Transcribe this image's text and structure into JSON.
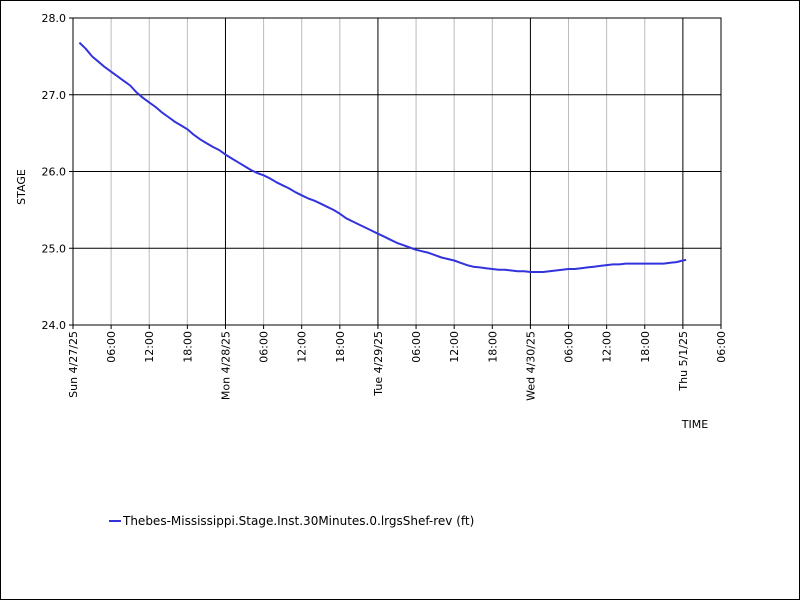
{
  "chart_data": {
    "type": "line",
    "ylabel": "STAGE",
    "xlabel": "TIME",
    "ylim": [
      24.0,
      28.0
    ],
    "y_ticks": [
      "24.0",
      "25.0",
      "26.0",
      "27.0",
      "28.0"
    ],
    "x_range_hours": [
      0,
      102
    ],
    "x_ticks": [
      {
        "h": 0,
        "label": "Sun 4/27/25",
        "major": true
      },
      {
        "h": 6,
        "label": "06:00",
        "major": false
      },
      {
        "h": 12,
        "label": "12:00",
        "major": false
      },
      {
        "h": 18,
        "label": "18:00",
        "major": false
      },
      {
        "h": 24,
        "label": "Mon 4/28/25",
        "major": true
      },
      {
        "h": 30,
        "label": "06:00",
        "major": false
      },
      {
        "h": 36,
        "label": "12:00",
        "major": false
      },
      {
        "h": 42,
        "label": "18:00",
        "major": false
      },
      {
        "h": 48,
        "label": "Tue 4/29/25",
        "major": true
      },
      {
        "h": 54,
        "label": "06:00",
        "major": false
      },
      {
        "h": 60,
        "label": "12:00",
        "major": false
      },
      {
        "h": 66,
        "label": "18:00",
        "major": false
      },
      {
        "h": 72,
        "label": "Wed 4/30/25",
        "major": true
      },
      {
        "h": 78,
        "label": "06:00",
        "major": false
      },
      {
        "h": 84,
        "label": "12:00",
        "major": false
      },
      {
        "h": 90,
        "label": "18:00",
        "major": false
      },
      {
        "h": 96,
        "label": "Thu 5/1/25",
        "major": true
      },
      {
        "h": 102,
        "label": "06:00",
        "major": false
      }
    ],
    "grid": true,
    "legend_position": "bottom-left",
    "series": [
      {
        "name": "Thebes-Mississippi.Stage.Inst.30Minutes.0.lrgsShef-rev (ft)",
        "color": "#3333dd",
        "x_hours": [
          1,
          2,
          3,
          4,
          5,
          6,
          7,
          8,
          9,
          10,
          11,
          12,
          13,
          14,
          15,
          16,
          17,
          18,
          19,
          20,
          21,
          22,
          23,
          24,
          25,
          26,
          27,
          28,
          29,
          30,
          31,
          32,
          33,
          34,
          35,
          36,
          37,
          38,
          39,
          40,
          41,
          42,
          43,
          44,
          45,
          46,
          47,
          48,
          49,
          50,
          51,
          52,
          53,
          54,
          55,
          56,
          57,
          58,
          59,
          60,
          61,
          62,
          63,
          64,
          65,
          66,
          67,
          68,
          69,
          70,
          71,
          72,
          73,
          74,
          75,
          76,
          77,
          78,
          79,
          80,
          81,
          82,
          83,
          84,
          85,
          86,
          87,
          88,
          89,
          90,
          91,
          92,
          93,
          94,
          95,
          96,
          96.5
        ],
        "values": [
          27.68,
          27.6,
          27.5,
          27.43,
          27.36,
          27.3,
          27.24,
          27.18,
          27.12,
          27.03,
          26.96,
          26.9,
          26.84,
          26.77,
          26.71,
          26.65,
          26.6,
          26.55,
          26.48,
          26.42,
          26.37,
          26.32,
          26.28,
          26.22,
          26.17,
          26.12,
          26.07,
          26.02,
          25.98,
          25.95,
          25.91,
          25.86,
          25.82,
          25.78,
          25.73,
          25.69,
          25.65,
          25.62,
          25.58,
          25.54,
          25.5,
          25.45,
          25.39,
          25.35,
          25.31,
          25.27,
          25.23,
          25.19,
          25.15,
          25.11,
          25.07,
          25.04,
          25.01,
          24.98,
          24.96,
          24.94,
          24.91,
          24.88,
          24.86,
          24.84,
          24.81,
          24.78,
          24.76,
          24.75,
          24.74,
          24.73,
          24.72,
          24.72,
          24.71,
          24.7,
          24.7,
          24.69,
          24.69,
          24.69,
          24.7,
          24.71,
          24.72,
          24.73,
          24.73,
          24.74,
          24.75,
          24.76,
          24.77,
          24.78,
          24.79,
          24.79,
          24.8,
          24.8,
          24.8,
          24.8,
          24.8,
          24.8,
          24.8,
          24.81,
          24.82,
          24.84,
          24.85
        ]
      }
    ]
  }
}
